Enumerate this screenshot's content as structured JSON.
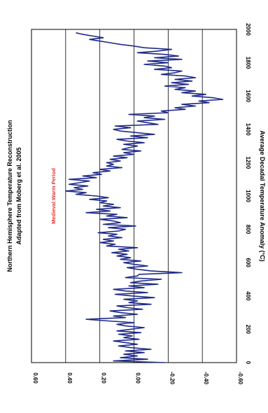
{
  "chart_data": {
    "type": "line",
    "title": "Northern Hemisphere Temperature Reconstruction",
    "subtitle": "Adapted from Moberg et al. 2005",
    "xlabel": "",
    "ylabel": "Average Decadal Temperature Anomaly (°C)",
    "xlim": [
      0,
      2000
    ],
    "ylim": [
      -0.6,
      0.6
    ],
    "x_ticks": [
      "0",
      "200",
      "400",
      "600",
      "800",
      "1000",
      "1200",
      "1400",
      "1600",
      "1800",
      "2000"
    ],
    "y_ticks": [
      "0.60",
      "0.40",
      "0.20",
      "0.00",
      "-0.20",
      "-0.40",
      "-0.60"
    ],
    "grid": "horizontal",
    "annotation": {
      "text": "Medieval Warm Period",
      "x": 1000,
      "y": 0.46,
      "color": "#e8322f"
    },
    "colors": {
      "line": "#1f2a87",
      "grid": "#000000"
    },
    "series": [
      {
        "x": [
          0,
          10,
          20,
          30,
          40,
          50,
          60,
          70,
          80,
          90,
          100,
          110,
          120,
          130,
          140,
          150,
          160,
          170,
          180,
          190,
          200,
          210,
          220,
          230,
          240,
          250,
          260,
          270,
          280,
          290,
          300,
          310,
          320,
          330,
          340,
          350,
          360,
          370,
          380,
          390,
          400,
          410,
          420,
          430,
          440,
          450,
          460,
          470,
          480,
          490,
          500,
          510,
          520,
          530,
          540,
          550,
          560,
          570,
          580,
          590,
          600,
          610,
          620,
          630,
          640,
          650,
          660,
          670,
          680,
          690,
          700,
          710,
          720,
          730,
          740,
          750,
          760,
          770,
          780,
          790,
          800,
          810,
          820,
          830,
          840,
          850,
          860,
          870,
          880,
          890,
          900,
          910,
          920,
          930,
          940,
          950,
          960,
          970,
          980,
          990,
          1000,
          1010,
          1020,
          1030,
          1040,
          1050,
          1060,
          1070,
          1080,
          1090,
          1100,
          1110,
          1120,
          1130,
          1140,
          1150,
          1160,
          1170,
          1180,
          1190,
          1200,
          1210,
          1220,
          1230,
          1240,
          1250,
          1260,
          1270,
          1280,
          1290,
          1300,
          1310,
          1320,
          1330,
          1340,
          1350,
          1360,
          1370,
          1380,
          1390,
          1400,
          1410,
          1420,
          1430,
          1440,
          1450,
          1460,
          1470,
          1480,
          1490,
          1500,
          1510,
          1520,
          1530,
          1540,
          1550,
          1560,
          1570,
          1580,
          1590,
          1600,
          1610,
          1620,
          1630,
          1640,
          1650,
          1660,
          1670,
          1680,
          1690,
          1700,
          1710,
          1720,
          1730,
          1740,
          1750,
          1760,
          1770,
          1780,
          1790,
          1800,
          1810,
          1820,
          1830,
          1840,
          1850,
          1860,
          1870,
          1880,
          1890,
          1900,
          1910,
          1920,
          1930,
          1940,
          1950,
          1960,
          1970,
          1980
        ],
        "y": [
          -0.18,
          0.12,
          -0.08,
          0.08,
          -0.02,
          0.06,
          -0.06,
          0.05,
          -0.1,
          0.02,
          0.09,
          -0.02,
          0.05,
          0.12,
          -0.03,
          0.06,
          0.01,
          0.09,
          -0.04,
          0.1,
          0.02,
          -0.06,
          0.05,
          0.1,
          0.0,
          0.15,
          0.28,
          0.05,
          0.12,
          -0.02,
          0.08,
          0.14,
          -0.05,
          0.04,
          0.1,
          -0.1,
          0.03,
          -0.02,
          0.06,
          -0.12,
          0.01,
          0.11,
          -0.08,
          0.05,
          0.12,
          -0.06,
          0.03,
          -0.14,
          0.02,
          -0.04,
          -0.16,
          0.05,
          -0.02,
          -0.03,
          -0.28,
          -0.1,
          -0.02,
          0.04,
          -0.08,
          0.0,
          0.06,
          -0.04,
          0.08,
          0.02,
          0.1,
          0.04,
          0.13,
          0.03,
          0.09,
          -0.02,
          0.16,
          0.11,
          0.2,
          0.12,
          0.18,
          0.07,
          0.15,
          0.1,
          0.21,
          0.09,
          0.05,
          0.15,
          -0.01,
          0.18,
          0.08,
          0.12,
          0.2,
          0.04,
          0.16,
          0.1,
          0.28,
          0.14,
          0.22,
          0.08,
          0.18,
          0.12,
          0.2,
          0.16,
          0.26,
          0.15,
          0.22,
          0.34,
          0.28,
          0.4,
          0.3,
          0.35,
          0.27,
          0.38,
          0.32,
          0.26,
          0.38,
          0.22,
          0.3,
          0.19,
          0.24,
          0.14,
          0.2,
          0.07,
          0.16,
          0.12,
          0.16,
          0.08,
          0.14,
          0.04,
          0.12,
          0.0,
          0.06,
          -0.04,
          0.07,
          0.03,
          -0.02,
          0.06,
          -0.06,
          0.04,
          0.1,
          -0.08,
          0.02,
          -0.12,
          -0.02,
          0.08,
          0.12,
          0.02,
          0.11,
          -0.14,
          -0.08,
          -0.02,
          -0.18,
          -0.06,
          -0.12,
          0.03,
          -0.2,
          -0.16,
          -0.3,
          -0.24,
          -0.36,
          -0.28,
          -0.44,
          -0.38,
          -0.52,
          -0.46,
          -0.34,
          -0.42,
          -0.28,
          -0.36,
          -0.24,
          -0.3,
          -0.18,
          -0.32,
          -0.22,
          -0.34,
          -0.24,
          -0.36,
          -0.3,
          -0.16,
          -0.24,
          -0.28,
          -0.12,
          -0.22,
          -0.18,
          -0.06,
          -0.2,
          -0.08,
          -0.28,
          -0.12,
          -0.26,
          -0.18,
          -0.02,
          -0.14,
          -0.22,
          -0.06,
          0.0,
          0.08,
          0.14,
          0.2,
          0.26,
          0.18,
          0.24,
          0.3,
          0.34
        ]
      }
    ]
  }
}
